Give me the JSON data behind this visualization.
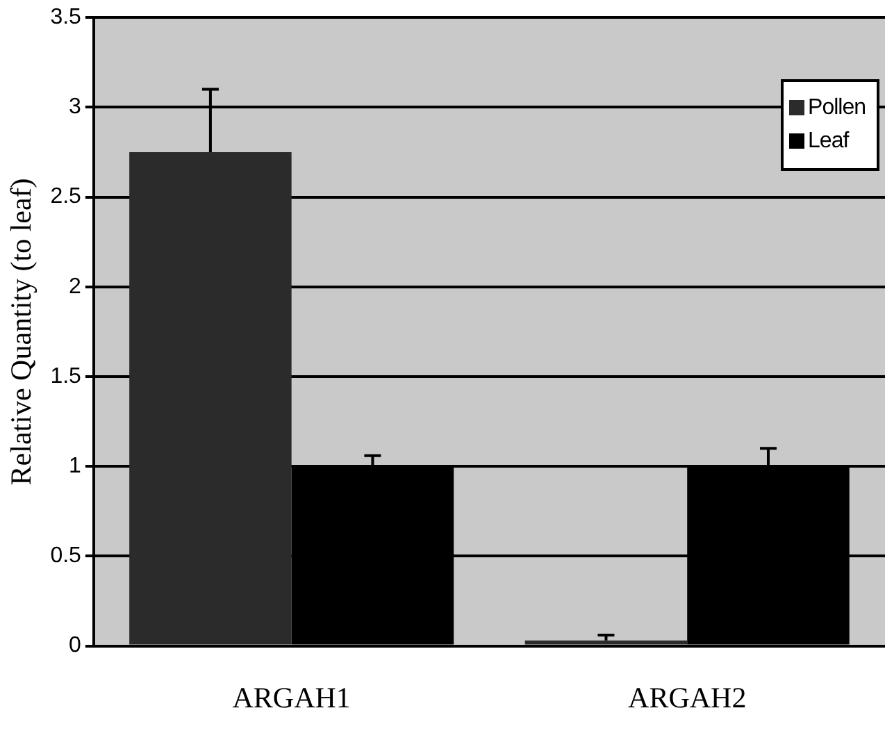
{
  "chart_data": {
    "type": "bar",
    "ylabel": "Relative Quantity (to leaf)",
    "categories": [
      "ARGAH1",
      "ARGAH2"
    ],
    "series": [
      {
        "name": "Pollen",
        "color": "#2b2b2b",
        "values": [
          2.75,
          0.03
        ],
        "errors": [
          [
            2.75,
            3.1
          ],
          [
            0.03,
            0.06
          ]
        ]
      },
      {
        "name": "Leaf",
        "color": "#000000",
        "values": [
          1,
          1
        ],
        "errors": [
          [
            1,
            1.06
          ],
          [
            1,
            1.1
          ]
        ]
      }
    ],
    "ylim": [
      0,
      3.5
    ],
    "yticks": [
      0,
      0.5,
      1,
      1.5,
      2,
      2.5,
      3,
      3.5
    ],
    "grid": "y",
    "legend": "top right"
  }
}
